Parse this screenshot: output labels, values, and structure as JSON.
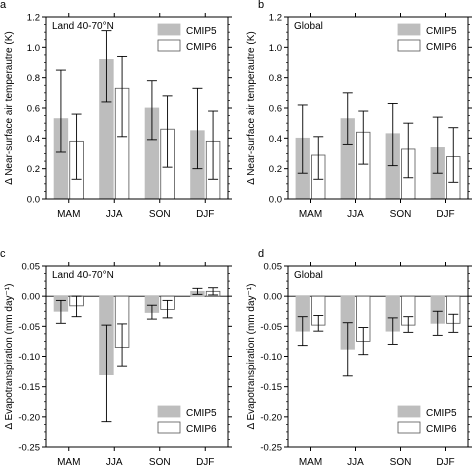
{
  "chart_data": [
    {
      "panel_letter": "a",
      "type": "bar",
      "title": "Land 40-70°N",
      "ylabel": "Δ Near-surface air temperautre (K)",
      "xlabel": "",
      "categories": [
        "MAM",
        "JJA",
        "SON",
        "DJF"
      ],
      "ylim": [
        0.0,
        1.2
      ],
      "yticks": [
        "0.0",
        "0.2",
        "0.4",
        "0.6",
        "0.8",
        "1.0",
        "1.2"
      ],
      "legend_position": "top-right",
      "series": [
        {
          "name": "CMIP5",
          "color": "#bdbdbd",
          "values": [
            0.53,
            0.92,
            0.6,
            0.45
          ],
          "err_low": [
            0.31,
            0.64,
            0.39,
            0.2
          ],
          "err_high": [
            0.85,
            1.11,
            0.78,
            0.73
          ]
        },
        {
          "name": "CMIP6",
          "color": "#ffffff",
          "values": [
            0.38,
            0.73,
            0.46,
            0.38
          ],
          "err_low": [
            0.13,
            0.41,
            0.21,
            0.13
          ],
          "err_high": [
            0.56,
            0.94,
            0.68,
            0.58
          ]
        }
      ]
    },
    {
      "panel_letter": "b",
      "type": "bar",
      "title": "Global",
      "ylabel": "Δ Near-surface air temperautre (K)",
      "xlabel": "",
      "categories": [
        "MAM",
        "JJA",
        "SON",
        "DJF"
      ],
      "ylim": [
        0.0,
        1.2
      ],
      "yticks": [
        "0.0",
        "0.2",
        "0.4",
        "0.6",
        "0.8",
        "1.0",
        "1.2"
      ],
      "legend_position": "top-right",
      "series": [
        {
          "name": "CMIP5",
          "color": "#bdbdbd",
          "values": [
            0.4,
            0.53,
            0.43,
            0.34
          ],
          "err_low": [
            0.17,
            0.36,
            0.22,
            0.17
          ],
          "err_high": [
            0.62,
            0.7,
            0.63,
            0.54
          ]
        },
        {
          "name": "CMIP6",
          "color": "#ffffff",
          "values": [
            0.29,
            0.44,
            0.33,
            0.28
          ],
          "err_low": [
            0.13,
            0.23,
            0.14,
            0.11
          ],
          "err_high": [
            0.41,
            0.58,
            0.5,
            0.47
          ]
        }
      ]
    },
    {
      "panel_letter": "c",
      "type": "bar",
      "title": "Land 40-70°N",
      "ylabel": "Δ Evapotranspiration (mm day⁻¹)",
      "xlabel": "",
      "categories": [
        "MAM",
        "JJA",
        "SON",
        "DJF"
      ],
      "ylim": [
        -0.25,
        0.05
      ],
      "yticks": [
        "-0.25",
        "-0.20",
        "-0.15",
        "-0.10",
        "-0.05",
        "0.00",
        "0.05"
      ],
      "legend_position": "bottom-right",
      "series": [
        {
          "name": "CMIP5",
          "color": "#bdbdbd",
          "values": [
            -0.025,
            -0.13,
            -0.027,
            0.008
          ],
          "err_low": [
            -0.045,
            -0.208,
            -0.038,
            0.003
          ],
          "err_high": [
            -0.007,
            -0.048,
            -0.015,
            0.013
          ]
        },
        {
          "name": "CMIP6",
          "color": "#ffffff",
          "values": [
            -0.016,
            -0.085,
            -0.022,
            0.008
          ],
          "err_low": [
            -0.034,
            -0.116,
            -0.036,
            0.002
          ],
          "err_high": [
            0.0,
            -0.046,
            -0.007,
            0.014
          ]
        }
      ]
    },
    {
      "panel_letter": "d",
      "type": "bar",
      "title": "Global",
      "ylabel": "Δ Evapotranspiration (mm day⁻¹)",
      "xlabel": "",
      "categories": [
        "MAM",
        "JJA",
        "SON",
        "DJF"
      ],
      "ylim": [
        -0.25,
        0.05
      ],
      "yticks": [
        "-0.25",
        "-0.20",
        "-0.15",
        "-0.10",
        "-0.05",
        "0.00",
        "0.05"
      ],
      "legend_position": "bottom-right",
      "series": [
        {
          "name": "CMIP5",
          "color": "#bdbdbd",
          "values": [
            -0.058,
            -0.088,
            -0.058,
            -0.045
          ],
          "err_low": [
            -0.082,
            -0.132,
            -0.08,
            -0.065
          ],
          "err_high": [
            -0.034,
            -0.044,
            -0.036,
            -0.025
          ]
        },
        {
          "name": "CMIP6",
          "color": "#ffffff",
          "values": [
            -0.048,
            -0.075,
            -0.048,
            -0.045
          ],
          "err_low": [
            -0.058,
            -0.097,
            -0.06,
            -0.06
          ],
          "err_high": [
            -0.032,
            -0.052,
            -0.034,
            -0.03
          ]
        }
      ]
    }
  ]
}
